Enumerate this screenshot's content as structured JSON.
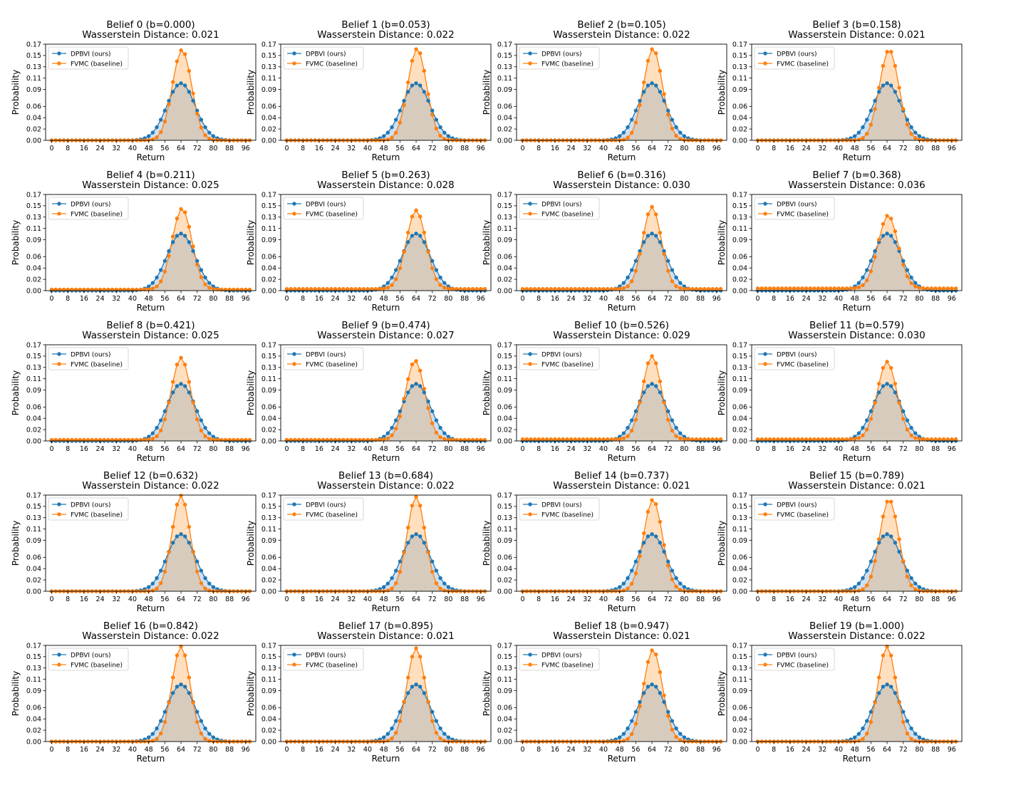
{
  "figure": {
    "xlabel": "Return",
    "ylabel": "Probability",
    "series_names": [
      "DPBVI (ours)",
      "FVMC (baseline)"
    ],
    "colors": {
      "dpbvi": "#1f77b4",
      "fvmc": "#ff7f0e",
      "fvmc_fill": "#ffd9b3",
      "overlap_fill": "#d6cbbd",
      "dpbvi_fill": "#c6d9ee"
    },
    "legend_location": "upper left",
    "grid": false
  },
  "chart_data": [
    {
      "type": "line",
      "title": "Belief 0 (b=0.000)",
      "subtitle": "Wasserstein Distance: 0.021",
      "xlabel": "Return",
      "ylabel": "Probability",
      "legend": [
        "DPBVI (ours)",
        "FVMC (baseline)"
      ],
      "xticks": [
        0,
        8,
        16,
        24,
        32,
        40,
        48,
        56,
        64,
        72,
        80,
        88,
        96
      ],
      "yticks": [
        0.0,
        0.02,
        0.04,
        0.06,
        0.09,
        0.11,
        0.13,
        0.15,
        0.17
      ],
      "ylim": [
        0,
        0.17
      ],
      "xlim": [
        -3,
        101
      ],
      "x_start": 0,
      "x_step": 2,
      "dpbvi": {
        "mean": 64,
        "std": 7.0,
        "peak": 0.101,
        "floor": 0.0
      },
      "fvmc": {
        "mean": 64.5,
        "std": 4.8,
        "peak": 0.16,
        "floor": 0.0
      }
    },
    {
      "type": "line",
      "title": "Belief 1 (b=0.053)",
      "subtitle": "Wasserstein Distance: 0.022",
      "xlabel": "Return",
      "ylabel": "Probability",
      "legend": [
        "DPBVI (ours)",
        "FVMC (baseline)"
      ],
      "xticks": [
        0,
        8,
        16,
        24,
        32,
        40,
        48,
        56,
        64,
        72,
        80,
        88,
        96
      ],
      "yticks": [
        0.0,
        0.02,
        0.04,
        0.06,
        0.09,
        0.11,
        0.13,
        0.15,
        0.17
      ],
      "ylim": [
        0,
        0.17
      ],
      "xlim": [
        -3,
        101
      ],
      "x_start": 0,
      "x_step": 2,
      "dpbvi": {
        "mean": 64,
        "std": 7.0,
        "peak": 0.101,
        "floor": 0.0
      },
      "fvmc": {
        "mean": 64.5,
        "std": 4.7,
        "peak": 0.162,
        "floor": 0.0
      }
    },
    {
      "type": "line",
      "title": "Belief 2 (b=0.105)",
      "subtitle": "Wasserstein Distance: 0.022",
      "xlabel": "Return",
      "ylabel": "Probability",
      "legend": [
        "DPBVI (ours)",
        "FVMC (baseline)"
      ],
      "xticks": [
        0,
        8,
        16,
        24,
        32,
        40,
        48,
        56,
        64,
        72,
        80,
        88,
        96
      ],
      "yticks": [
        0.0,
        0.02,
        0.04,
        0.06,
        0.09,
        0.11,
        0.13,
        0.15,
        0.17
      ],
      "ylim": [
        0,
        0.17
      ],
      "xlim": [
        -3,
        101
      ],
      "x_start": 0,
      "x_step": 2,
      "dpbvi": {
        "mean": 64,
        "std": 7.0,
        "peak": 0.101,
        "floor": 0.0
      },
      "fvmc": {
        "mean": 64.5,
        "std": 4.7,
        "peak": 0.162,
        "floor": 0.0
      }
    },
    {
      "type": "line",
      "title": "Belief 3 (b=0.158)",
      "subtitle": "Wasserstein Distance: 0.021",
      "xlabel": "Return",
      "ylabel": "Probability",
      "legend": [
        "DPBVI (ours)",
        "FVMC (baseline)"
      ],
      "xticks": [
        0,
        8,
        16,
        24,
        32,
        40,
        48,
        56,
        64,
        72,
        80,
        88,
        96
      ],
      "yticks": [
        0.0,
        0.02,
        0.04,
        0.06,
        0.09,
        0.11,
        0.13,
        0.15,
        0.17
      ],
      "ylim": [
        0,
        0.17
      ],
      "xlim": [
        -3,
        101
      ],
      "x_start": 0,
      "x_step": 2,
      "dpbvi": {
        "mean": 64,
        "std": 7.0,
        "peak": 0.101,
        "floor": 0.0
      },
      "fvmc": {
        "mean": 65,
        "std": 4.8,
        "peak": 0.16,
        "floor": 0.0
      }
    },
    {
      "type": "line",
      "title": "Belief 4 (b=0.211)",
      "subtitle": "Wasserstein Distance: 0.025",
      "xlabel": "Return",
      "ylabel": "Probability",
      "legend": [
        "DPBVI (ours)",
        "FVMC (baseline)"
      ],
      "xticks": [
        0,
        8,
        16,
        24,
        32,
        40,
        48,
        56,
        64,
        72,
        80,
        88,
        96
      ],
      "yticks": [
        0.0,
        0.02,
        0.04,
        0.06,
        0.09,
        0.11,
        0.13,
        0.15,
        0.17
      ],
      "ylim": [
        0,
        0.17
      ],
      "xlim": [
        -3,
        101
      ],
      "x_start": 0,
      "x_step": 2,
      "dpbvi": {
        "mean": 64,
        "std": 7.0,
        "peak": 0.101,
        "floor": 0.0
      },
      "fvmc": {
        "mean": 64.5,
        "std": 4.9,
        "peak": 0.145,
        "floor": 0.002
      }
    },
    {
      "type": "line",
      "title": "Belief 5 (b=0.263)",
      "subtitle": "Wasserstein Distance: 0.028",
      "xlabel": "Return",
      "ylabel": "Probability",
      "legend": [
        "DPBVI (ours)",
        "FVMC (baseline)"
      ],
      "xticks": [
        0,
        8,
        16,
        24,
        32,
        40,
        48,
        56,
        64,
        72,
        80,
        88,
        96
      ],
      "yticks": [
        0.0,
        0.02,
        0.04,
        0.06,
        0.09,
        0.11,
        0.13,
        0.15,
        0.17
      ],
      "ylim": [
        0,
        0.17
      ],
      "xlim": [
        -3,
        101
      ],
      "x_start": 0,
      "x_step": 2,
      "dpbvi": {
        "mean": 64,
        "std": 7.0,
        "peak": 0.101,
        "floor": 0.0
      },
      "fvmc": {
        "mean": 64,
        "std": 4.9,
        "peak": 0.142,
        "floor": 0.003
      }
    },
    {
      "type": "line",
      "title": "Belief 6 (b=0.316)",
      "subtitle": "Wasserstein Distance: 0.030",
      "xlabel": "Return",
      "ylabel": "Probability",
      "legend": [
        "DPBVI (ours)",
        "FVMC (baseline)"
      ],
      "xticks": [
        0,
        8,
        16,
        24,
        32,
        40,
        48,
        56,
        64,
        72,
        80,
        88,
        96
      ],
      "yticks": [
        0.0,
        0.02,
        0.04,
        0.06,
        0.09,
        0.11,
        0.13,
        0.15,
        0.17
      ],
      "ylim": [
        0,
        0.17
      ],
      "xlim": [
        -3,
        101
      ],
      "x_start": 0,
      "x_step": 2,
      "dpbvi": {
        "mean": 64,
        "std": 7.0,
        "peak": 0.101,
        "floor": 0.0
      },
      "fvmc": {
        "mean": 64,
        "std": 4.6,
        "peak": 0.148,
        "floor": 0.003
      }
    },
    {
      "type": "line",
      "title": "Belief 7 (b=0.368)",
      "subtitle": "Wasserstein Distance: 0.036",
      "xlabel": "Return",
      "ylabel": "Probability",
      "legend": [
        "DPBVI (ours)",
        "FVMC (baseline)"
      ],
      "xticks": [
        0,
        8,
        16,
        24,
        32,
        40,
        48,
        56,
        64,
        72,
        80,
        88,
        96
      ],
      "yticks": [
        0.0,
        0.02,
        0.04,
        0.06,
        0.09,
        0.11,
        0.13,
        0.15,
        0.17
      ],
      "ylim": [
        0,
        0.17
      ],
      "xlim": [
        -3,
        101
      ],
      "x_start": 0,
      "x_step": 2,
      "dpbvi": {
        "mean": 64,
        "std": 7.0,
        "peak": 0.101,
        "floor": 0.0
      },
      "fvmc": {
        "mean": 64.5,
        "std": 5.0,
        "peak": 0.133,
        "floor": 0.004
      }
    },
    {
      "type": "line",
      "title": "Belief 8 (b=0.421)",
      "subtitle": "Wasserstein Distance: 0.025",
      "xlabel": "Return",
      "ylabel": "Probability",
      "legend": [
        "DPBVI (ours)",
        "FVMC (baseline)"
      ],
      "xticks": [
        0,
        8,
        16,
        24,
        32,
        40,
        48,
        56,
        64,
        72,
        80,
        88,
        96
      ],
      "yticks": [
        0.0,
        0.02,
        0.04,
        0.06,
        0.09,
        0.11,
        0.13,
        0.15,
        0.17
      ],
      "ylim": [
        0,
        0.17
      ],
      "xlim": [
        -3,
        101
      ],
      "x_start": 0,
      "x_step": 2,
      "dpbvi": {
        "mean": 64,
        "std": 7.0,
        "peak": 0.101,
        "floor": 0.0
      },
      "fvmc": {
        "mean": 64,
        "std": 4.8,
        "peak": 0.147,
        "floor": 0.002
      }
    },
    {
      "type": "line",
      "title": "Belief 9 (b=0.474)",
      "subtitle": "Wasserstein Distance: 0.027",
      "xlabel": "Return",
      "ylabel": "Probability",
      "legend": [
        "DPBVI (ours)",
        "FVMC (baseline)"
      ],
      "xticks": [
        0,
        8,
        16,
        24,
        32,
        40,
        48,
        56,
        64,
        72,
        80,
        88,
        96
      ],
      "yticks": [
        0.0,
        0.02,
        0.04,
        0.06,
        0.09,
        0.11,
        0.13,
        0.15,
        0.17
      ],
      "ylim": [
        0,
        0.17
      ],
      "xlim": [
        -3,
        101
      ],
      "x_start": 0,
      "x_step": 2,
      "dpbvi": {
        "mean": 64,
        "std": 7.0,
        "peak": 0.101,
        "floor": 0.0
      },
      "fvmc": {
        "mean": 63.5,
        "std": 4.8,
        "peak": 0.142,
        "floor": 0.002
      }
    },
    {
      "type": "line",
      "title": "Belief 10 (b=0.526)",
      "subtitle": "Wasserstein Distance: 0.029",
      "xlabel": "Return",
      "ylabel": "Probability",
      "legend": [
        "DPBVI (ours)",
        "FVMC (baseline)"
      ],
      "xticks": [
        0,
        8,
        16,
        24,
        32,
        40,
        48,
        56,
        64,
        72,
        80,
        88,
        96
      ],
      "yticks": [
        0.0,
        0.02,
        0.04,
        0.06,
        0.09,
        0.11,
        0.13,
        0.15,
        0.17
      ],
      "ylim": [
        0,
        0.17
      ],
      "xlim": [
        -3,
        101
      ],
      "x_start": 0,
      "x_step": 2,
      "dpbvi": {
        "mean": 64,
        "std": 7.0,
        "peak": 0.101,
        "floor": 0.0
      },
      "fvmc": {
        "mean": 64,
        "std": 4.7,
        "peak": 0.15,
        "floor": 0.003
      }
    },
    {
      "type": "line",
      "title": "Belief 11 (b=0.579)",
      "subtitle": "Wasserstein Distance: 0.030",
      "xlabel": "Return",
      "ylabel": "Probability",
      "legend": [
        "DPBVI (ours)",
        "FVMC (baseline)"
      ],
      "xticks": [
        0,
        8,
        16,
        24,
        32,
        40,
        48,
        56,
        64,
        72,
        80,
        88,
        96
      ],
      "yticks": [
        0.0,
        0.02,
        0.04,
        0.06,
        0.09,
        0.11,
        0.13,
        0.15,
        0.17
      ],
      "ylim": [
        0,
        0.17
      ],
      "xlim": [
        -3,
        101
      ],
      "x_start": 0,
      "x_step": 2,
      "dpbvi": {
        "mean": 64,
        "std": 7.0,
        "peak": 0.101,
        "floor": 0.0
      },
      "fvmc": {
        "mean": 64,
        "std": 4.9,
        "peak": 0.14,
        "floor": 0.003
      }
    },
    {
      "type": "line",
      "title": "Belief 12 (b=0.632)",
      "subtitle": "Wasserstein Distance: 0.022",
      "xlabel": "Return",
      "ylabel": "Probability",
      "legend": [
        "DPBVI (ours)",
        "FVMC (baseline)"
      ],
      "xticks": [
        0,
        8,
        16,
        24,
        32,
        40,
        48,
        56,
        64,
        72,
        80,
        88,
        96
      ],
      "yticks": [
        0.0,
        0.02,
        0.04,
        0.06,
        0.09,
        0.11,
        0.13,
        0.15,
        0.17
      ],
      "ylim": [
        0,
        0.17
      ],
      "xlim": [
        -3,
        101
      ],
      "x_start": 0,
      "x_step": 2,
      "dpbvi": {
        "mean": 64,
        "std": 7.0,
        "peak": 0.101,
        "floor": 0.0
      },
      "fvmc": {
        "mean": 64,
        "std": 4.5,
        "peak": 0.169,
        "floor": 0.0
      }
    },
    {
      "type": "line",
      "title": "Belief 13 (b=0.684)",
      "subtitle": "Wasserstein Distance: 0.022",
      "xlabel": "Return",
      "ylabel": "Probability",
      "legend": [
        "DPBVI (ours)",
        "FVMC (baseline)"
      ],
      "xticks": [
        0,
        8,
        16,
        24,
        32,
        40,
        48,
        56,
        64,
        72,
        80,
        88,
        96
      ],
      "yticks": [
        0.0,
        0.02,
        0.04,
        0.06,
        0.09,
        0.11,
        0.13,
        0.15,
        0.17
      ],
      "ylim": [
        0,
        0.17
      ],
      "xlim": [
        -3,
        101
      ],
      "x_start": 0,
      "x_step": 2,
      "dpbvi": {
        "mean": 64,
        "std": 7.0,
        "peak": 0.101,
        "floor": 0.0
      },
      "fvmc": {
        "mean": 64,
        "std": 4.5,
        "peak": 0.167,
        "floor": 0.0
      }
    },
    {
      "type": "line",
      "title": "Belief 14 (b=0.737)",
      "subtitle": "Wasserstein Distance: 0.021",
      "xlabel": "Return",
      "ylabel": "Probability",
      "legend": [
        "DPBVI (ours)",
        "FVMC (baseline)"
      ],
      "xticks": [
        0,
        8,
        16,
        24,
        32,
        40,
        48,
        56,
        64,
        72,
        80,
        88,
        96
      ],
      "yticks": [
        0.0,
        0.02,
        0.04,
        0.06,
        0.09,
        0.11,
        0.13,
        0.15,
        0.17
      ],
      "ylim": [
        0,
        0.17
      ],
      "xlim": [
        -3,
        101
      ],
      "x_start": 0,
      "x_step": 2,
      "dpbvi": {
        "mean": 64,
        "std": 7.0,
        "peak": 0.101,
        "floor": 0.0
      },
      "fvmc": {
        "mean": 64.5,
        "std": 4.7,
        "peak": 0.162,
        "floor": 0.0
      }
    },
    {
      "type": "line",
      "title": "Belief 15 (b=0.789)",
      "subtitle": "Wasserstein Distance: 0.021",
      "xlabel": "Return",
      "ylabel": "Probability",
      "legend": [
        "DPBVI (ours)",
        "FVMC (baseline)"
      ],
      "xticks": [
        0,
        8,
        16,
        24,
        32,
        40,
        48,
        56,
        64,
        72,
        80,
        88,
        96
      ],
      "yticks": [
        0.0,
        0.02,
        0.04,
        0.06,
        0.09,
        0.11,
        0.13,
        0.15,
        0.17
      ],
      "ylim": [
        0,
        0.17
      ],
      "xlim": [
        -3,
        101
      ],
      "x_start": 0,
      "x_step": 2,
      "dpbvi": {
        "mean": 64,
        "std": 7.0,
        "peak": 0.101,
        "floor": 0.0
      },
      "fvmc": {
        "mean": 65,
        "std": 4.7,
        "peak": 0.162,
        "floor": 0.0
      }
    },
    {
      "type": "line",
      "title": "Belief 16 (b=0.842)",
      "subtitle": "Wasserstein Distance: 0.022",
      "xlabel": "Return",
      "ylabel": "Probability",
      "legend": [
        "DPBVI (ours)",
        "FVMC (baseline)"
      ],
      "xticks": [
        0,
        8,
        16,
        24,
        32,
        40,
        48,
        56,
        64,
        72,
        80,
        88,
        96
      ],
      "yticks": [
        0.0,
        0.02,
        0.04,
        0.06,
        0.09,
        0.11,
        0.13,
        0.15,
        0.17
      ],
      "ylim": [
        0,
        0.17
      ],
      "xlim": [
        -3,
        101
      ],
      "x_start": 0,
      "x_step": 2,
      "dpbvi": {
        "mean": 64,
        "std": 7.0,
        "peak": 0.101,
        "floor": 0.0
      },
      "fvmc": {
        "mean": 64,
        "std": 4.5,
        "peak": 0.168,
        "floor": 0.0
      }
    },
    {
      "type": "line",
      "title": "Belief 17 (b=0.895)",
      "subtitle": "Wasserstein Distance: 0.021",
      "xlabel": "Return",
      "ylabel": "Probability",
      "legend": [
        "DPBVI (ours)",
        "FVMC (baseline)"
      ],
      "xticks": [
        0,
        8,
        16,
        24,
        32,
        40,
        48,
        56,
        64,
        72,
        80,
        88,
        96
      ],
      "yticks": [
        0.0,
        0.02,
        0.04,
        0.06,
        0.09,
        0.11,
        0.13,
        0.15,
        0.17
      ],
      "ylim": [
        0,
        0.17
      ],
      "xlim": [
        -3,
        101
      ],
      "x_start": 0,
      "x_step": 2,
      "dpbvi": {
        "mean": 64,
        "std": 7.0,
        "peak": 0.101,
        "floor": 0.0
      },
      "fvmc": {
        "mean": 64,
        "std": 4.6,
        "peak": 0.165,
        "floor": 0.0
      }
    },
    {
      "type": "line",
      "title": "Belief 18 (b=0.947)",
      "subtitle": "Wasserstein Distance: 0.021",
      "xlabel": "Return",
      "ylabel": "Probability",
      "legend": [
        "DPBVI (ours)",
        "FVMC (baseline)"
      ],
      "xticks": [
        0,
        8,
        16,
        24,
        32,
        40,
        48,
        56,
        64,
        72,
        80,
        88,
        96
      ],
      "yticks": [
        0.0,
        0.02,
        0.04,
        0.06,
        0.09,
        0.11,
        0.13,
        0.15,
        0.17
      ],
      "ylim": [
        0,
        0.17
      ],
      "xlim": [
        -3,
        101
      ],
      "x_start": 0,
      "x_step": 2,
      "dpbvi": {
        "mean": 64,
        "std": 7.0,
        "peak": 0.101,
        "floor": 0.0
      },
      "fvmc": {
        "mean": 64.5,
        "std": 4.7,
        "peak": 0.162,
        "floor": 0.0
      }
    },
    {
      "type": "line",
      "title": "Belief 19 (b=1.000)",
      "subtitle": "Wasserstein Distance: 0.022",
      "xlabel": "Return",
      "ylabel": "Probability",
      "legend": [
        "DPBVI (ours)",
        "FVMC (baseline)"
      ],
      "xticks": [
        0,
        8,
        16,
        24,
        32,
        40,
        48,
        56,
        64,
        72,
        80,
        88,
        96
      ],
      "yticks": [
        0.0,
        0.02,
        0.04,
        0.06,
        0.09,
        0.11,
        0.13,
        0.15,
        0.17
      ],
      "ylim": [
        0,
        0.17
      ],
      "xlim": [
        -3,
        101
      ],
      "x_start": 0,
      "x_step": 2,
      "dpbvi": {
        "mean": 64,
        "std": 7.0,
        "peak": 0.101,
        "floor": 0.0
      },
      "fvmc": {
        "mean": 64,
        "std": 4.5,
        "peak": 0.168,
        "floor": 0.0
      }
    }
  ]
}
